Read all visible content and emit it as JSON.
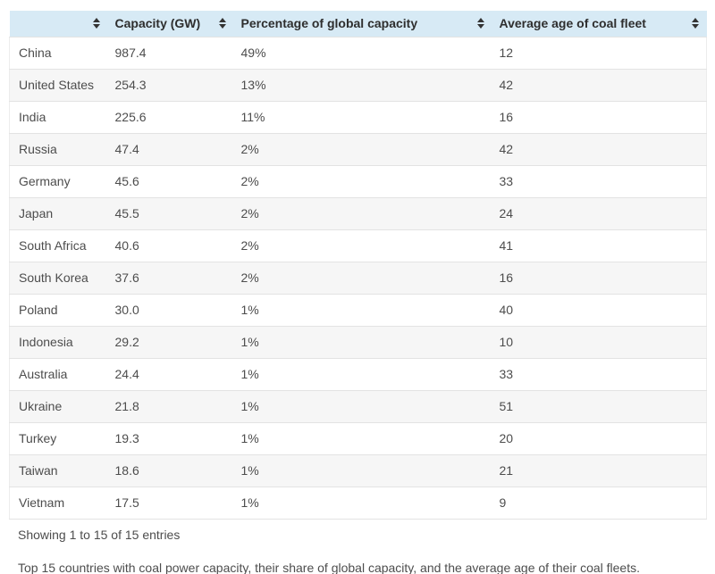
{
  "table": {
    "columns": [
      {
        "label": "",
        "sortable": true
      },
      {
        "label": "Capacity (GW)",
        "sortable": true
      },
      {
        "label": "Percentage of global capacity",
        "sortable": true
      },
      {
        "label": "Average age of coal fleet",
        "sortable": true
      }
    ],
    "rows": [
      {
        "country": "China",
        "capacity_gw": "987.4",
        "pct_global": "49%",
        "avg_age": "12"
      },
      {
        "country": "United States",
        "capacity_gw": "254.3",
        "pct_global": "13%",
        "avg_age": "42"
      },
      {
        "country": "India",
        "capacity_gw": "225.6",
        "pct_global": "11%",
        "avg_age": "16"
      },
      {
        "country": "Russia",
        "capacity_gw": "47.4",
        "pct_global": "2%",
        "avg_age": "42"
      },
      {
        "country": "Germany",
        "capacity_gw": "45.6",
        "pct_global": "2%",
        "avg_age": "33"
      },
      {
        "country": "Japan",
        "capacity_gw": "45.5",
        "pct_global": "2%",
        "avg_age": "24"
      },
      {
        "country": "South Africa",
        "capacity_gw": "40.6",
        "pct_global": "2%",
        "avg_age": "41"
      },
      {
        "country": "South Korea",
        "capacity_gw": "37.6",
        "pct_global": "2%",
        "avg_age": "16"
      },
      {
        "country": "Poland",
        "capacity_gw": "30.0",
        "pct_global": "1%",
        "avg_age": "40"
      },
      {
        "country": "Indonesia",
        "capacity_gw": "29.2",
        "pct_global": "1%",
        "avg_age": "10"
      },
      {
        "country": "Australia",
        "capacity_gw": "24.4",
        "pct_global": "1%",
        "avg_age": "33"
      },
      {
        "country": "Ukraine",
        "capacity_gw": "21.8",
        "pct_global": "1%",
        "avg_age": "51"
      },
      {
        "country": "Turkey",
        "capacity_gw": "19.3",
        "pct_global": "1%",
        "avg_age": "20"
      },
      {
        "country": "Taiwan",
        "capacity_gw": "18.6",
        "pct_global": "1%",
        "avg_age": "21"
      },
      {
        "country": "Vietnam",
        "capacity_gw": "17.5",
        "pct_global": "1%",
        "avg_age": "9"
      }
    ]
  },
  "footer": {
    "entries_info": "Showing 1 to 15 of 15 entries"
  },
  "caption": "Top 15 countries with coal power capacity, their share of global capacity, and the average age of their coal fleets.",
  "colors": {
    "header_bg": "#d7eaf5",
    "row_alt_bg": "#f6f6f6",
    "border": "#e3e3e3",
    "text": "#4d4d4d",
    "header_text": "#2e2e2e",
    "sort_icon": "#333333"
  }
}
